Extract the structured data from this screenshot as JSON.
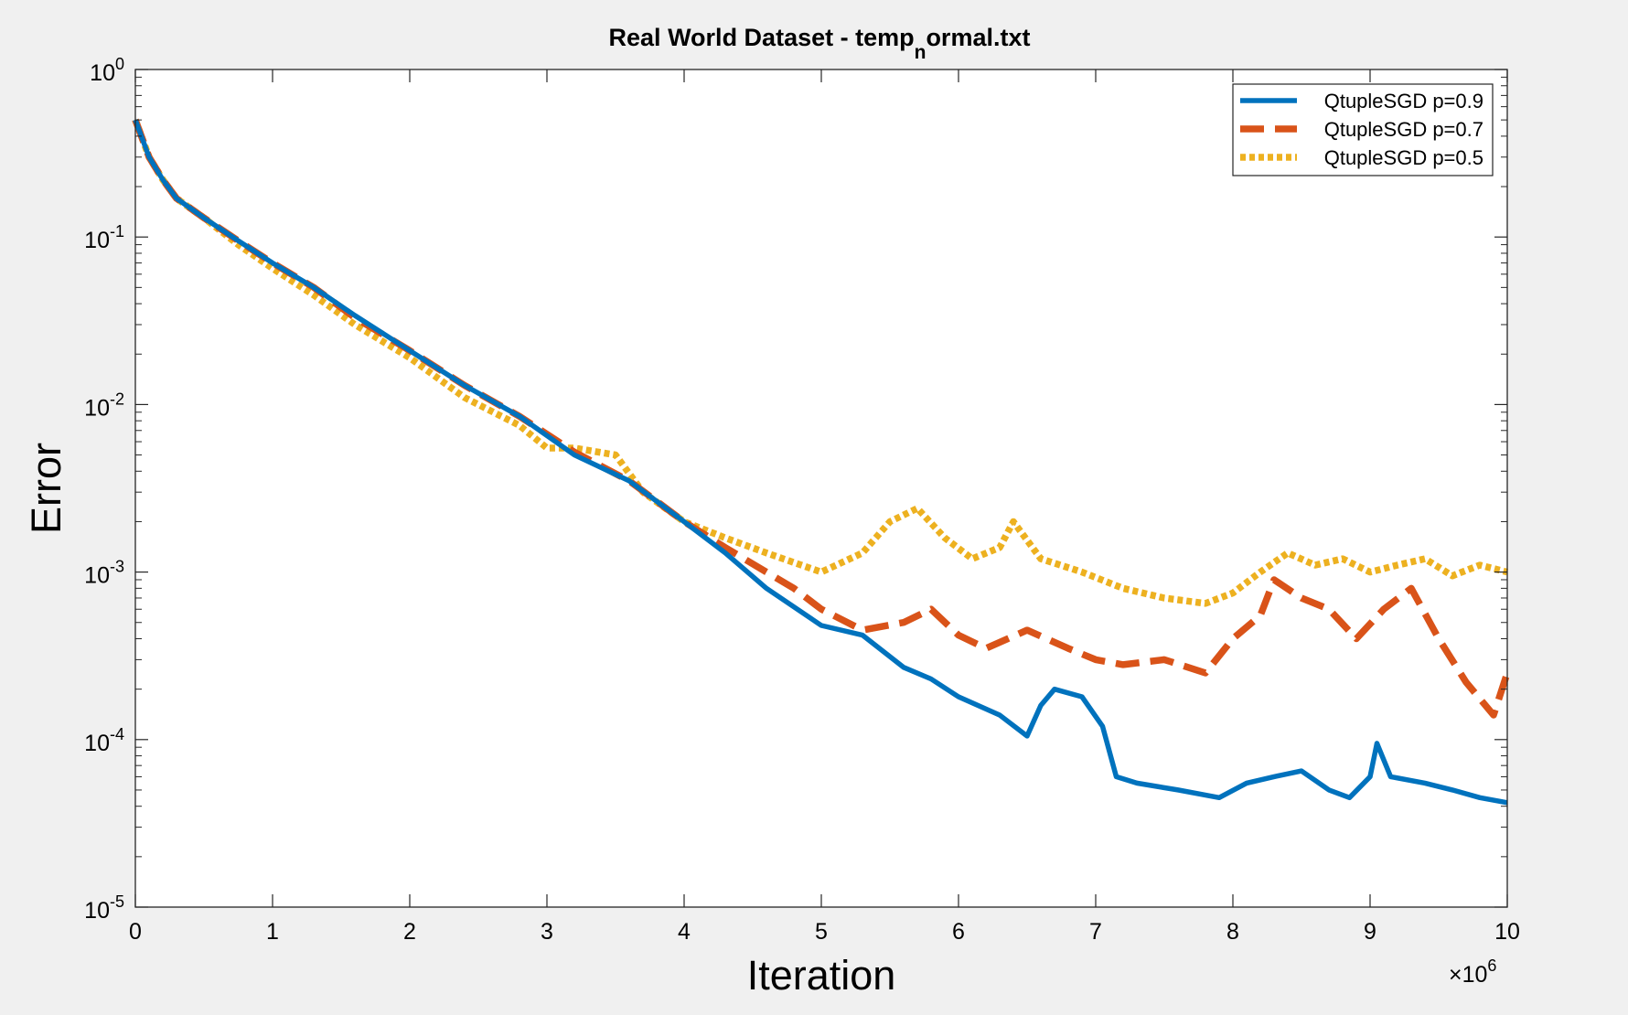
{
  "chart_data": {
    "type": "line",
    "title": "Real World Dataset - temp",
    "title_subscript": "n",
    "title_suffix": "ormal.txt",
    "xlabel": "Iteration",
    "ylabel": "Error",
    "x_exponent_base": "×10",
    "x_exponent": "6",
    "x_scale_factor": 1000000,
    "xlim": [
      0,
      10
    ],
    "ylim_exponents": [
      -5,
      0
    ],
    "yscale": "log",
    "grid": false,
    "legend_position": "top-right",
    "x_tick_labels": [
      "0",
      "1",
      "2",
      "3",
      "4",
      "5",
      "6",
      "7",
      "8",
      "9",
      "10"
    ],
    "y_tick_labels": [
      {
        "base": "10",
        "exp": "0"
      },
      {
        "base": "10",
        "exp": "-1"
      },
      {
        "base": "10",
        "exp": "-2"
      },
      {
        "base": "10",
        "exp": "-3"
      },
      {
        "base": "10",
        "exp": "-4"
      },
      {
        "base": "10",
        "exp": "-5"
      }
    ],
    "series": [
      {
        "name": "QtupleSGD p=0.9",
        "color": "#0072bd",
        "style": "solid",
        "x": [
          0,
          0.1,
          0.2,
          0.3,
          0.5,
          0.75,
          1.0,
          1.3,
          1.6,
          2.0,
          2.4,
          2.8,
          3.2,
          3.6,
          4.0,
          4.3,
          4.6,
          5.0,
          5.3,
          5.6,
          5.8,
          6.0,
          6.3,
          6.5,
          6.6,
          6.7,
          6.9,
          7.05,
          7.15,
          7.3,
          7.6,
          7.9,
          8.1,
          8.3,
          8.5,
          8.7,
          8.85,
          9.0,
          9.05,
          9.15,
          9.4,
          9.6,
          9.8,
          10.0
        ],
        "y": [
          0.5,
          0.3,
          0.22,
          0.17,
          0.13,
          0.095,
          0.07,
          0.05,
          0.034,
          0.021,
          0.013,
          0.0085,
          0.005,
          0.0035,
          0.002,
          0.0013,
          0.0008,
          0.00048,
          0.00042,
          0.00027,
          0.00023,
          0.00018,
          0.00014,
          0.000105,
          0.00016,
          0.0002,
          0.00018,
          0.00012,
          6e-05,
          5.5e-05,
          5e-05,
          4.5e-05,
          5.5e-05,
          6e-05,
          6.5e-05,
          5e-05,
          4.5e-05,
          6e-05,
          9.5e-05,
          6e-05,
          5.5e-05,
          5e-05,
          4.5e-05,
          4.2e-05
        ]
      },
      {
        "name": "QtupleSGD p=0.7",
        "color": "#d95319",
        "style": "dashed",
        "x": [
          0,
          0.1,
          0.2,
          0.3,
          0.5,
          0.75,
          1.0,
          1.3,
          1.6,
          2.0,
          2.4,
          2.8,
          3.2,
          3.6,
          4.0,
          4.3,
          4.6,
          4.8,
          5.0,
          5.3,
          5.6,
          5.8,
          6.0,
          6.2,
          6.5,
          6.8,
          7.0,
          7.2,
          7.5,
          7.8,
          8.0,
          8.2,
          8.3,
          8.5,
          8.7,
          8.9,
          9.1,
          9.3,
          9.5,
          9.7,
          9.9,
          10.0
        ],
        "y": [
          0.5,
          0.3,
          0.22,
          0.17,
          0.13,
          0.095,
          0.07,
          0.05,
          0.033,
          0.021,
          0.013,
          0.0085,
          0.0052,
          0.0035,
          0.002,
          0.0014,
          0.001,
          0.0008,
          0.0006,
          0.00045,
          0.0005,
          0.0006,
          0.00042,
          0.00035,
          0.00045,
          0.00035,
          0.0003,
          0.00028,
          0.0003,
          0.00025,
          0.0004,
          0.00055,
          0.0009,
          0.0007,
          0.0006,
          0.0004,
          0.0006,
          0.0008,
          0.0004,
          0.00022,
          0.00014,
          0.00025
        ]
      },
      {
        "name": "QtupleSGD p=0.5",
        "color": "#edb120",
        "style": "dotted",
        "x": [
          0,
          0.1,
          0.2,
          0.3,
          0.5,
          0.75,
          1.0,
          1.3,
          1.6,
          2.0,
          2.4,
          2.8,
          3.0,
          3.2,
          3.5,
          3.7,
          4.0,
          4.3,
          4.6,
          5.0,
          5.3,
          5.5,
          5.7,
          5.9,
          6.1,
          6.3,
          6.4,
          6.6,
          6.9,
          7.2,
          7.5,
          7.8,
          8.0,
          8.2,
          8.4,
          8.6,
          8.8,
          9.0,
          9.2,
          9.4,
          9.6,
          9.8,
          10.0
        ],
        "y": [
          0.5,
          0.3,
          0.22,
          0.17,
          0.13,
          0.09,
          0.065,
          0.045,
          0.03,
          0.019,
          0.011,
          0.0075,
          0.0055,
          0.0055,
          0.005,
          0.003,
          0.002,
          0.0016,
          0.0013,
          0.001,
          0.0013,
          0.002,
          0.0024,
          0.0016,
          0.0012,
          0.0014,
          0.002,
          0.0012,
          0.001,
          0.0008,
          0.0007,
          0.00065,
          0.00075,
          0.001,
          0.0013,
          0.0011,
          0.0012,
          0.001,
          0.0011,
          0.0012,
          0.00095,
          0.0011,
          0.001
        ]
      }
    ]
  }
}
